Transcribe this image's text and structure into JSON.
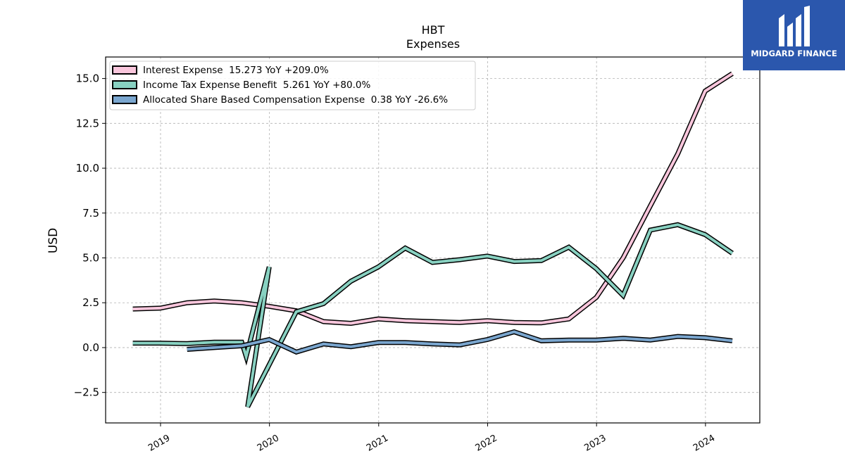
{
  "chart_data": {
    "type": "line",
    "title": "HBT",
    "subtitle": "Expenses",
    "xlabel": "",
    "ylabel": "USD",
    "ylim": [
      -4.2,
      16.2
    ],
    "xlim": [
      "2018-07-01",
      "2024-07-01"
    ],
    "y_ticks": [
      -2.5,
      0.0,
      2.5,
      5.0,
      7.5,
      10.0,
      12.5,
      15.0
    ],
    "y_tick_labels": [
      "−2.5",
      "0.0",
      "2.5",
      "5.0",
      "7.5",
      "10.0",
      "12.5",
      "15.0"
    ],
    "x_ticks": [
      "2019-01-01",
      "2020-01-01",
      "2021-01-01",
      "2022-01-01",
      "2023-01-01",
      "2024-01-01"
    ],
    "x_tick_labels": [
      "2019",
      "2020",
      "2021",
      "2022",
      "2023",
      "2024"
    ],
    "grid": true,
    "legend_position": "upper-left",
    "series": [
      {
        "name": "Interest Expense",
        "legend_label": "Interest Expense  15.273 YoY +209.0%",
        "color": "#f9c6dc",
        "points": [
          [
            "2018-09-30",
            2.15
          ],
          [
            "2018-12-31",
            2.2
          ],
          [
            "2019-03-31",
            2.5
          ],
          [
            "2019-06-30",
            2.6
          ],
          [
            "2019-09-30",
            2.5
          ],
          [
            "2019-12-31",
            2.3
          ],
          [
            "2020-03-31",
            2.05
          ],
          [
            "2020-06-30",
            1.45
          ],
          [
            "2020-09-30",
            1.35
          ],
          [
            "2020-12-31",
            1.6
          ],
          [
            "2021-03-31",
            1.5
          ],
          [
            "2021-06-30",
            1.45
          ],
          [
            "2021-09-30",
            1.4
          ],
          [
            "2021-12-31",
            1.5
          ],
          [
            "2022-03-31",
            1.4
          ],
          [
            "2022-06-30",
            1.38
          ],
          [
            "2022-09-30",
            1.6
          ],
          [
            "2022-12-31",
            2.8
          ],
          [
            "2023-03-31",
            5.0
          ],
          [
            "2023-06-30",
            7.9
          ],
          [
            "2023-09-30",
            10.8
          ],
          [
            "2023-12-31",
            14.3
          ],
          [
            "2024-03-31",
            15.273
          ]
        ]
      },
      {
        "name": "Income Tax Expense Benefit",
        "legend_label": "Income Tax Expense Benefit  5.261 YoY +80.0%",
        "color": "#88d1c1",
        "points": [
          [
            "2018-09-30",
            0.25
          ],
          [
            "2018-12-31",
            0.25
          ],
          [
            "2019-03-31",
            0.22
          ],
          [
            "2019-06-30",
            0.3
          ],
          [
            "2019-09-30",
            0.3
          ],
          [
            "2019-10-15",
            -0.5
          ],
          [
            "2019-12-31",
            4.5
          ],
          [
            "2019-10-20",
            -3.3
          ],
          [
            "2020-03-31",
            2.0
          ],
          [
            "2020-06-30",
            2.45
          ],
          [
            "2020-09-30",
            3.7
          ],
          [
            "2020-12-31",
            4.5
          ],
          [
            "2021-03-31",
            5.55
          ],
          [
            "2021-06-30",
            4.75
          ],
          [
            "2021-09-30",
            4.9
          ],
          [
            "2021-12-31",
            5.1
          ],
          [
            "2022-03-31",
            4.8
          ],
          [
            "2022-06-30",
            4.85
          ],
          [
            "2022-09-30",
            5.6
          ],
          [
            "2022-12-31",
            4.4
          ],
          [
            "2023-03-31",
            2.9
          ],
          [
            "2023-06-30",
            6.55
          ],
          [
            "2023-09-30",
            6.85
          ],
          [
            "2023-12-31",
            6.3
          ],
          [
            "2024-03-31",
            5.261
          ]
        ]
      },
      {
        "name": "Allocated Share Based Compensation Expense",
        "legend_label": "Allocated Share Based Compensation Expense  0.38 YoY -26.6%",
        "color": "#7aa6cf",
        "points": [
          [
            "2019-03-31",
            -0.1
          ],
          [
            "2019-06-30",
            0.0
          ],
          [
            "2019-09-30",
            0.1
          ],
          [
            "2019-12-31",
            0.45
          ],
          [
            "2020-03-31",
            -0.25
          ],
          [
            "2020-06-30",
            0.2
          ],
          [
            "2020-09-30",
            0.05
          ],
          [
            "2020-12-31",
            0.28
          ],
          [
            "2021-03-31",
            0.28
          ],
          [
            "2021-06-30",
            0.2
          ],
          [
            "2021-09-30",
            0.15
          ],
          [
            "2021-12-31",
            0.45
          ],
          [
            "2022-03-31",
            0.88
          ],
          [
            "2022-06-30",
            0.38
          ],
          [
            "2022-09-30",
            0.42
          ],
          [
            "2022-12-31",
            0.42
          ],
          [
            "2023-03-31",
            0.52
          ],
          [
            "2023-06-30",
            0.42
          ],
          [
            "2023-09-30",
            0.62
          ],
          [
            "2023-12-31",
            0.55
          ],
          [
            "2024-03-31",
            0.38
          ]
        ]
      }
    ]
  },
  "logo": {
    "name": "MIDGARD FINANCE",
    "background": "#2b57ad"
  }
}
